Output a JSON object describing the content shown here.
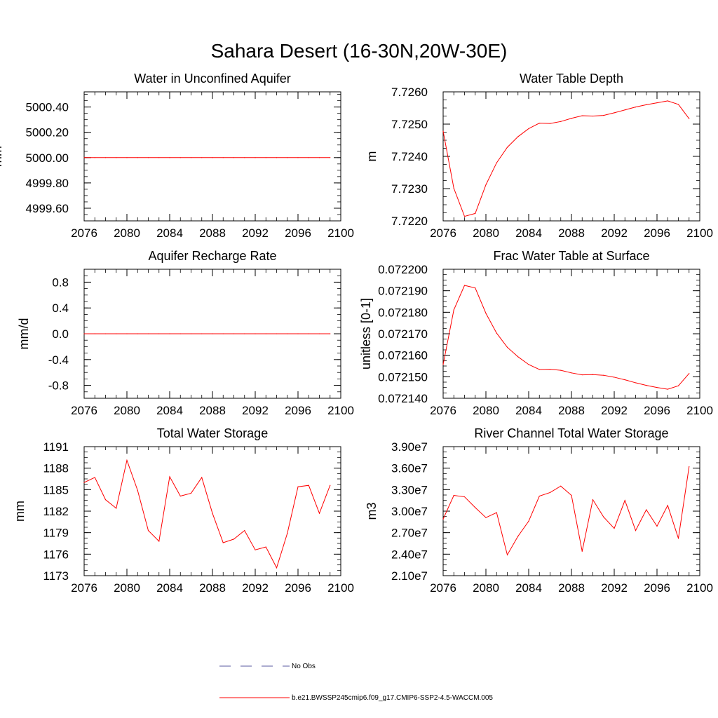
{
  "figure": {
    "title": "Sahara Desert (16-30N,20W-30E)",
    "legend": [
      {
        "label": "No Obs",
        "color": "#5a5aa0",
        "style": "dashed"
      },
      {
        "label": "b.e21.BWSSP245cmip6.f09_g17.CMIP6-SSP2-4.5-WACCM.005",
        "color": "#ff0000",
        "style": "solid"
      }
    ]
  },
  "chart_data": [
    {
      "type": "line",
      "title": "Water in Unconfined Aquifer",
      "ylabel": "mm",
      "xlim": [
        2076,
        2100
      ],
      "ylim": [
        4999.5,
        5000.52
      ],
      "xticks": [
        2076,
        2080,
        2084,
        2088,
        2092,
        2096,
        2100
      ],
      "xtick_labels": [
        "2076",
        "2080",
        "2084",
        "2088",
        "2092",
        "2096",
        "2100"
      ],
      "yticks": [
        4999.6,
        4999.8,
        5000.0,
        5000.2,
        5000.4
      ],
      "ytick_labels": [
        "4999.60",
        "4999.80",
        "5000.00",
        "5000.20",
        "5000.40"
      ],
      "series": [
        {
          "color": "#ff0000",
          "x": [
            2076,
            2077,
            2078,
            2079,
            2080,
            2081,
            2082,
            2083,
            2084,
            2085,
            2086,
            2087,
            2088,
            2089,
            2090,
            2091,
            2092,
            2093,
            2094,
            2095,
            2096,
            2097,
            2098,
            2099
          ],
          "values": [
            5000.0,
            5000.0,
            5000.0,
            5000.0,
            5000.0,
            5000.0,
            5000.0,
            5000.0,
            5000.0,
            5000.0,
            5000.0,
            5000.0,
            5000.0,
            5000.0,
            5000.0,
            5000.0,
            5000.0,
            5000.0,
            5000.0,
            5000.0,
            5000.0,
            5000.0,
            5000.0,
            5000.0
          ]
        }
      ]
    },
    {
      "type": "line",
      "title": "Water Table Depth",
      "ylabel": "m",
      "xlim": [
        2076,
        2100
      ],
      "ylim": [
        7.722,
        7.726
      ],
      "xticks": [
        2076,
        2080,
        2084,
        2088,
        2092,
        2096,
        2100
      ],
      "xtick_labels": [
        "2076",
        "2080",
        "2084",
        "2088",
        "2092",
        "2096",
        "2100"
      ],
      "yticks": [
        7.722,
        7.723,
        7.724,
        7.725,
        7.726
      ],
      "ytick_labels": [
        "7.7220",
        "7.7230",
        "7.7240",
        "7.7250",
        "7.7260"
      ],
      "series": [
        {
          "color": "#ff0000",
          "x": [
            2076,
            2077,
            2078,
            2079,
            2080,
            2081,
            2082,
            2083,
            2084,
            2085,
            2086,
            2087,
            2088,
            2089,
            2090,
            2091,
            2092,
            2093,
            2094,
            2095,
            2096,
            2097,
            2098,
            2099
          ],
          "values": [
            7.72478,
            7.72301,
            7.72214,
            7.72223,
            7.72312,
            7.7238,
            7.72428,
            7.72461,
            7.72486,
            7.72503,
            7.72502,
            7.72508,
            7.72518,
            7.72526,
            7.72525,
            7.72527,
            7.72535,
            7.72544,
            7.72553,
            7.7256,
            7.72566,
            7.72572,
            7.72561,
            7.72517
          ]
        }
      ]
    },
    {
      "type": "line",
      "title": "Aquifer Recharge Rate",
      "ylabel": "mm/d",
      "xlim": [
        2076,
        2100
      ],
      "ylim": [
        -1.0,
        1.0
      ],
      "xticks": [
        2076,
        2080,
        2084,
        2088,
        2092,
        2096,
        2100
      ],
      "xtick_labels": [
        "2076",
        "2080",
        "2084",
        "2088",
        "2092",
        "2096",
        "2100"
      ],
      "yticks": [
        -0.8,
        -0.4,
        0.0,
        0.4,
        0.8
      ],
      "ytick_labels": [
        "-0.8",
        "-0.4",
        "0.0",
        "0.4",
        "0.8"
      ],
      "series": [
        {
          "color": "#ff0000",
          "x": [
            2076,
            2077,
            2078,
            2079,
            2080,
            2081,
            2082,
            2083,
            2084,
            2085,
            2086,
            2087,
            2088,
            2089,
            2090,
            2091,
            2092,
            2093,
            2094,
            2095,
            2096,
            2097,
            2098,
            2099
          ],
          "values": [
            0,
            0,
            0,
            0,
            0,
            0,
            0,
            0,
            0,
            0,
            0,
            0,
            0,
            0,
            0,
            0,
            0,
            0,
            0,
            0,
            0,
            0,
            0,
            0
          ]
        }
      ]
    },
    {
      "type": "line",
      "title": "Frac Water Table at Surface",
      "ylabel": "unitless [0-1]",
      "xlim": [
        2076,
        2100
      ],
      "ylim": [
        0.07214,
        0.0722
      ],
      "xticks": [
        2076,
        2080,
        2084,
        2088,
        2092,
        2096,
        2100
      ],
      "xtick_labels": [
        "2076",
        "2080",
        "2084",
        "2088",
        "2092",
        "2096",
        "2100"
      ],
      "yticks": [
        0.07214,
        0.07215,
        0.07216,
        0.07217,
        0.07218,
        0.07219,
        0.0722
      ],
      "ytick_labels": [
        "0.072140",
        "0.072150",
        "0.072160",
        "0.072170",
        "0.072180",
        "0.072190",
        "0.072200"
      ],
      "series": [
        {
          "color": "#ff0000",
          "x": [
            2076,
            2077,
            2078,
            2079,
            2080,
            2081,
            2082,
            2083,
            2084,
            2085,
            2086,
            2087,
            2088,
            2089,
            2090,
            2091,
            2092,
            2093,
            2094,
            2095,
            2096,
            2097,
            2098,
            2099
          ],
          "values": [
            0.0721557,
            0.0721811,
            0.0721925,
            0.0721913,
            0.0721795,
            0.0721703,
            0.0721637,
            0.0721593,
            0.0721557,
            0.0721534,
            0.0721535,
            0.072153,
            0.0721518,
            0.0721509,
            0.072151,
            0.0721507,
            0.0721498,
            0.0721486,
            0.0721472,
            0.072146,
            0.072145,
            0.0721442,
            0.0721458,
            0.0721515
          ]
        }
      ]
    },
    {
      "type": "line",
      "title": "Total Water Storage",
      "ylabel": "mm",
      "xlim": [
        2076,
        2100
      ],
      "ylim": [
        1173,
        1191
      ],
      "xticks": [
        2076,
        2080,
        2084,
        2088,
        2092,
        2096,
        2100
      ],
      "xtick_labels": [
        "2076",
        "2080",
        "2084",
        "2088",
        "2092",
        "2096",
        "2100"
      ],
      "yticks": [
        1173,
        1176,
        1179,
        1182,
        1185,
        1188,
        1191
      ],
      "ytick_labels": [
        "1173",
        "1176",
        "1179",
        "1182",
        "1185",
        "1188",
        "1191"
      ],
      "series": [
        {
          "color": "#ff0000",
          "x": [
            2076,
            2077,
            2078,
            2079,
            2080,
            2081,
            2082,
            2083,
            2084,
            2085,
            2086,
            2087,
            2088,
            2089,
            2090,
            2091,
            2092,
            2093,
            2094,
            2095,
            2096,
            2097,
            2098,
            2099
          ],
          "values": [
            1186.0,
            1186.7,
            1183.6,
            1182.4,
            1189.1,
            1184.9,
            1179.3,
            1177.8,
            1186.8,
            1184.1,
            1184.5,
            1186.7,
            1181.7,
            1177.6,
            1178.1,
            1179.3,
            1176.6,
            1177.0,
            1174.1,
            1178.9,
            1185.4,
            1185.6,
            1181.7,
            1185.6
          ]
        }
      ]
    },
    {
      "type": "line",
      "title": "River Channel Total Water Storage",
      "ylabel": "m3",
      "xlim": [
        2076,
        2100
      ],
      "ylim": [
        21000000,
        39000000
      ],
      "xticks": [
        2076,
        2080,
        2084,
        2088,
        2092,
        2096,
        2100
      ],
      "xtick_labels": [
        "2076",
        "2080",
        "2084",
        "2088",
        "2092",
        "2096",
        "2100"
      ],
      "yticks": [
        21000000,
        24000000,
        27000000,
        30000000,
        33000000,
        36000000,
        39000000
      ],
      "ytick_labels": [
        "2.10e7",
        "2.40e7",
        "2.70e7",
        "3.00e7",
        "3.30e7",
        "3.60e7",
        "3.90e7"
      ],
      "series": [
        {
          "color": "#ff0000",
          "x": [
            2076,
            2077,
            2078,
            2079,
            2080,
            2081,
            2082,
            2083,
            2084,
            2085,
            2086,
            2087,
            2088,
            2089,
            2090,
            2091,
            2092,
            2093,
            2094,
            2095,
            2096,
            2097,
            2098,
            2099
          ],
          "values": [
            28900000,
            32200000,
            32000000,
            30500000,
            29100000,
            29800000,
            23900000,
            26500000,
            28600000,
            32100000,
            32600000,
            33500000,
            32200000,
            24400000,
            31600000,
            29200000,
            27600000,
            31500000,
            27300000,
            30200000,
            27900000,
            30800000,
            26200000,
            36200000
          ]
        }
      ]
    }
  ]
}
